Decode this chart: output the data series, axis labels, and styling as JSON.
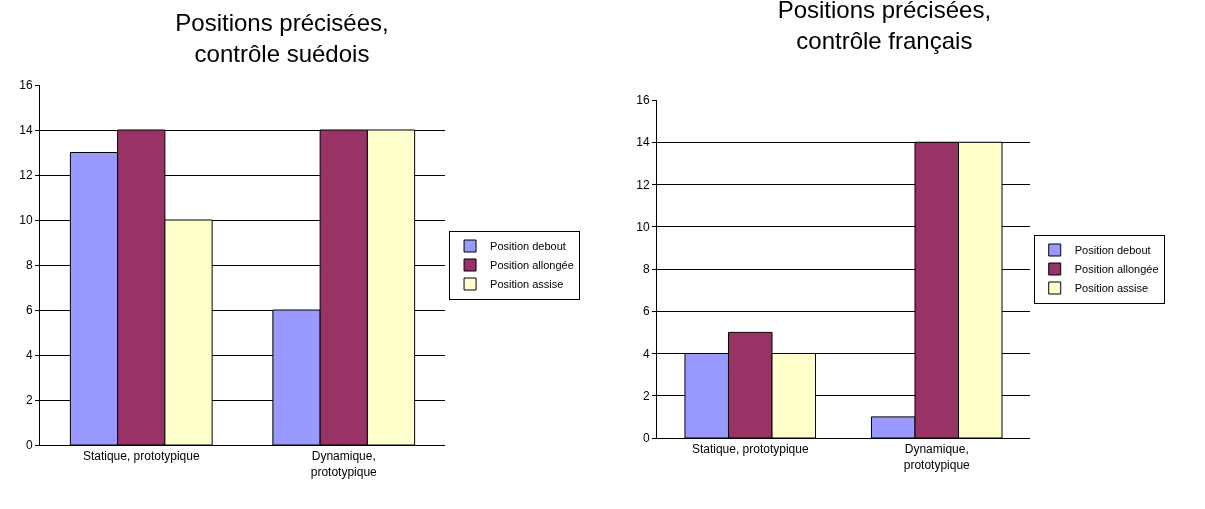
{
  "chart_data": [
    {
      "type": "bar",
      "title": "Positions précisées, contrôle suédois",
      "categories": [
        "Statique, prototypique",
        "Dynamique, prototypique"
      ],
      "series": [
        {
          "name": "Position debout",
          "color": "#9999ff",
          "values": [
            13,
            6
          ]
        },
        {
          "name": "Position allongée",
          "color": "#993366",
          "values": [
            14,
            14
          ]
        },
        {
          "name": "Position assise",
          "color": "#ffffcc",
          "values": [
            10,
            14
          ]
        }
      ],
      "ylim": [
        0,
        16
      ],
      "yticks": [
        0,
        2,
        4,
        6,
        8,
        10,
        12,
        14,
        16
      ],
      "grid": "y",
      "legend": "right"
    },
    {
      "type": "bar",
      "title": "Positions précisées, contrôle français",
      "categories": [
        "Statique, prototypique",
        "Dynamique, prototypique"
      ],
      "series": [
        {
          "name": "Position debout",
          "color": "#9999ff",
          "values": [
            4,
            1
          ]
        },
        {
          "name": "Position allongée",
          "color": "#993366",
          "values": [
            5,
            14
          ]
        },
        {
          "name": "Position assise",
          "color": "#ffffcc",
          "values": [
            4,
            14
          ]
        }
      ],
      "ylim": [
        0,
        16
      ],
      "yticks": [
        0,
        2,
        4,
        6,
        8,
        10,
        12,
        14,
        16
      ],
      "grid": "y",
      "legend": "right"
    }
  ]
}
